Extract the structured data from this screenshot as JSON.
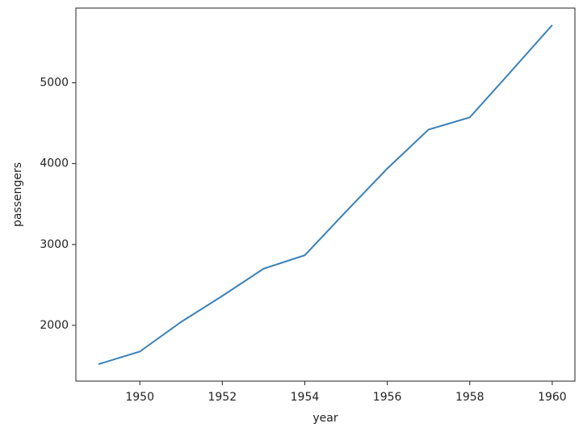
{
  "chart_data": {
    "type": "line",
    "x": [
      1949,
      1950,
      1951,
      1952,
      1953,
      1954,
      1955,
      1956,
      1957,
      1958,
      1959,
      1960
    ],
    "series": [
      {
        "name": "passengers",
        "color": "#3a80b9",
        "values": [
          1520,
          1676,
          2042,
          2364,
          2700,
          2867,
          3408,
          3939,
          4421,
          4572,
          5140,
          5714
        ]
      }
    ],
    "xlabel": "year",
    "ylabel": "passengers",
    "xlim": [
      1948.45,
      1960.55
    ],
    "ylim": [
      1310.3,
      5923.7
    ],
    "xticks": [
      1950,
      1952,
      1954,
      1956,
      1958,
      1960
    ],
    "yticks": [
      2000,
      3000,
      4000,
      5000
    ],
    "grid": false
  }
}
